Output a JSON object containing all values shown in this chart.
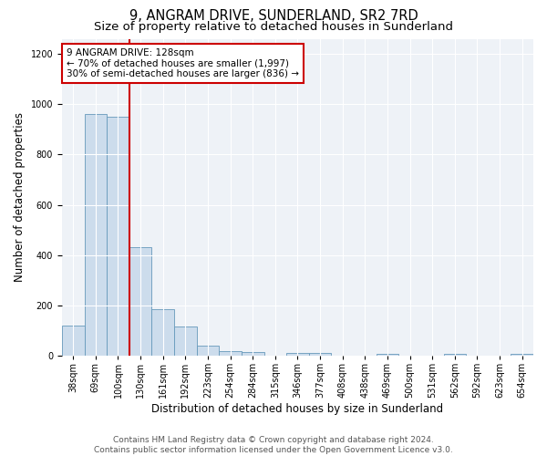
{
  "title": "9, ANGRAM DRIVE, SUNDERLAND, SR2 7RD",
  "subtitle": "Size of property relative to detached houses in Sunderland",
  "xlabel": "Distribution of detached houses by size in Sunderland",
  "ylabel": "Number of detached properties",
  "categories": [
    "38sqm",
    "69sqm",
    "100sqm",
    "130sqm",
    "161sqm",
    "192sqm",
    "223sqm",
    "254sqm",
    "284sqm",
    "315sqm",
    "346sqm",
    "377sqm",
    "408sqm",
    "438sqm",
    "469sqm",
    "500sqm",
    "531sqm",
    "562sqm",
    "592sqm",
    "623sqm",
    "654sqm"
  ],
  "values": [
    120,
    960,
    950,
    430,
    185,
    115,
    42,
    18,
    14,
    0,
    13,
    13,
    0,
    0,
    8,
    0,
    0,
    8,
    0,
    0,
    8
  ],
  "bar_color": "#ccdcec",
  "bar_edge_color": "#6699bb",
  "red_line_x": 2.5,
  "annotation_text": "9 ANGRAM DRIVE: 128sqm\n← 70% of detached houses are smaller (1,997)\n30% of semi-detached houses are larger (836) →",
  "annotation_box_color": "#ffffff",
  "annotation_box_edge_color": "#cc0000",
  "red_line_color": "#cc0000",
  "ylim": [
    0,
    1260
  ],
  "yticks": [
    0,
    200,
    400,
    600,
    800,
    1000,
    1200
  ],
  "background_color": "#eef2f7",
  "footer_text": "Contains HM Land Registry data © Crown copyright and database right 2024.\nContains public sector information licensed under the Open Government Licence v3.0.",
  "title_fontsize": 10.5,
  "subtitle_fontsize": 9.5,
  "xlabel_fontsize": 8.5,
  "ylabel_fontsize": 8.5,
  "annotation_fontsize": 7.5,
  "footer_fontsize": 6.5,
  "tick_fontsize": 7
}
